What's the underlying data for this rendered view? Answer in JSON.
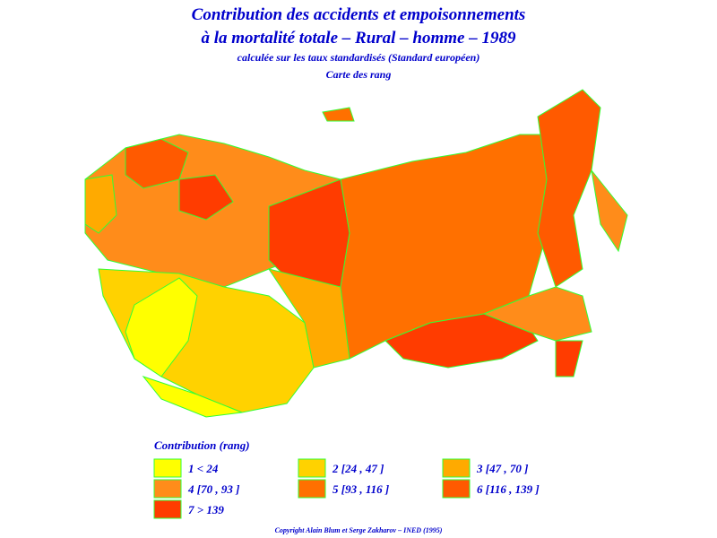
{
  "header": {
    "title_lines": [
      "Contribution des accidents et empoisonnements",
      "à la mortalité totale – Rural – homme – 1989",
      "calculée sur les taux standardisés (Standard européen)",
      "Carte des rang"
    ]
  },
  "legend": {
    "title": "Contribution (rang)",
    "items": [
      {
        "label": "1  <  24",
        "color": "#ffff00"
      },
      {
        "label": "2 [24 , 47 ]",
        "color": "#ffd200"
      },
      {
        "label": "3 [47 , 70 ]",
        "color": "#ffaa00"
      },
      {
        "label": "4 [70 , 93 ]",
        "color": "#ff8c1a"
      },
      {
        "label": "5 [93 , 116 ]",
        "color": "#ff7000"
      },
      {
        "label": "6 [116 , 139 ]",
        "color": "#ff5a00"
      },
      {
        "label": "7  >  139",
        "color": "#ff3c00"
      }
    ]
  },
  "footer": {
    "copyright": "Copyright Alain Blum et Serge Zakharov – INED (1995)"
  }
}
